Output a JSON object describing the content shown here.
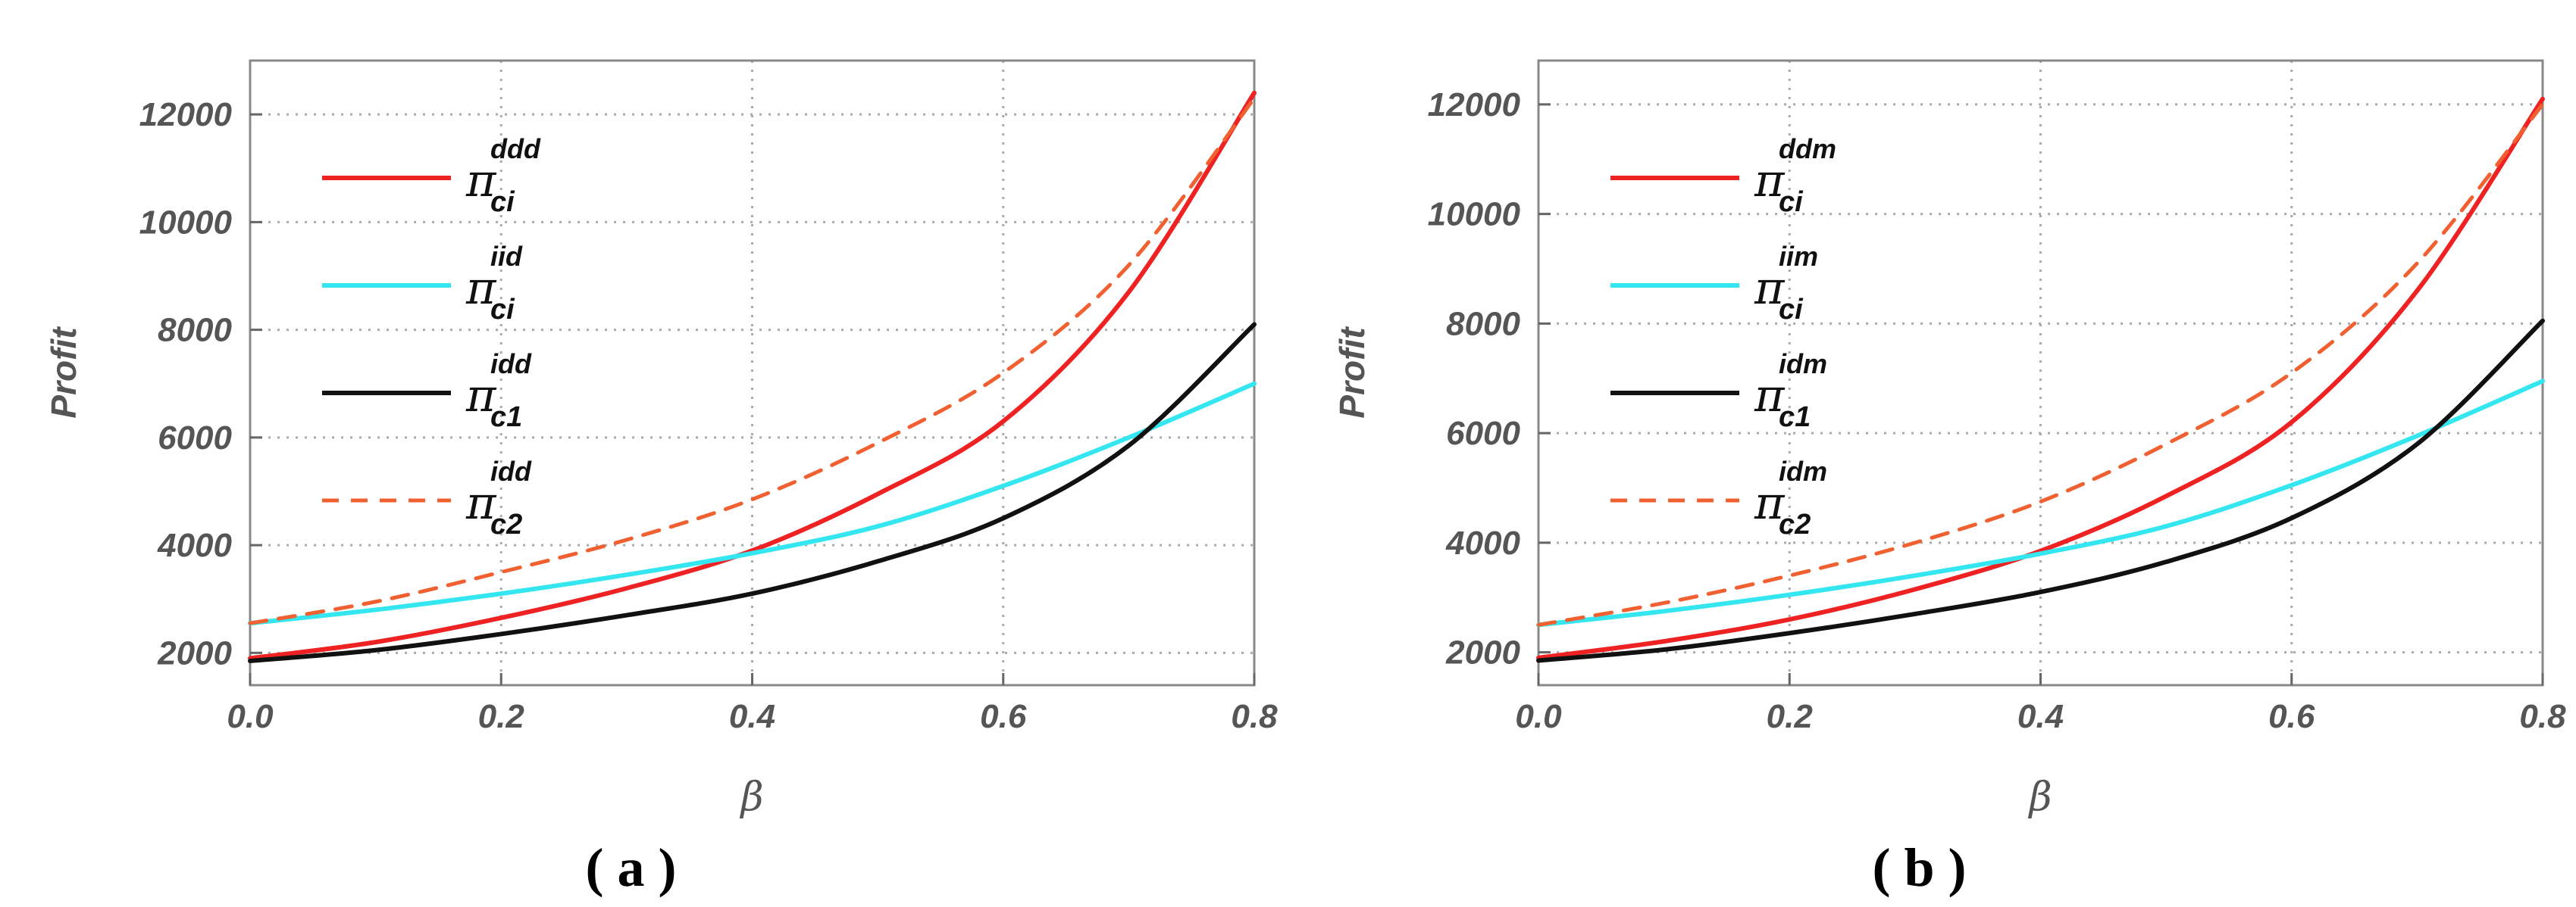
{
  "chart_data": [
    {
      "type": "line",
      "caption": "( a )",
      "xlabel": "β",
      "ylabel": "Profit",
      "xlim": [
        0,
        0.8
      ],
      "ylim": [
        1400,
        13000
      ],
      "xticks": [
        "0.0",
        "0.2",
        "0.4",
        "0.6",
        "0.8"
      ],
      "yticks": [
        "2000",
        "4000",
        "6000",
        "8000",
        "10000",
        "12000"
      ],
      "grid": true,
      "legend_position": "top-left",
      "x": [
        0.0,
        0.1,
        0.2,
        0.3,
        0.4,
        0.5,
        0.6,
        0.7,
        0.8
      ],
      "series": [
        {
          "name": "π",
          "sub": "ci",
          "sup": "ddd",
          "color": "#ee2222",
          "style": "solid",
          "values": [
            1900,
            2200,
            2650,
            3200,
            3900,
            4950,
            6300,
            8700,
            12400
          ]
        },
        {
          "name": "π",
          "sub": "ci",
          "sup": "iid",
          "color": "#33e6ef",
          "style": "solid",
          "values": [
            2550,
            2800,
            3100,
            3450,
            3850,
            4350,
            5100,
            6000,
            7000
          ]
        },
        {
          "name": "π",
          "sub": "c1",
          "sup": "idd",
          "color": "#111111",
          "style": "solid",
          "values": [
            1850,
            2050,
            2350,
            2700,
            3100,
            3700,
            4500,
            5850,
            8100
          ]
        },
        {
          "name": "π",
          "sub": "c2",
          "sup": "idd",
          "color": "#f06030",
          "style": "dashed",
          "values": [
            2550,
            2950,
            3500,
            4100,
            4850,
            5900,
            7200,
            9200,
            12300
          ]
        }
      ]
    },
    {
      "type": "line",
      "caption": "( b )",
      "xlabel": "β",
      "ylabel": "Profit",
      "xlim": [
        0,
        0.8
      ],
      "ylim": [
        1400,
        12800
      ],
      "xticks": [
        "0.0",
        "0.2",
        "0.4",
        "0.6",
        "0.8"
      ],
      "yticks": [
        "2000",
        "4000",
        "6000",
        "8000",
        "10000",
        "12000"
      ],
      "grid": true,
      "legend_position": "top-left",
      "x": [
        0.0,
        0.1,
        0.2,
        0.3,
        0.4,
        0.5,
        0.6,
        0.7,
        0.8
      ],
      "series": [
        {
          "name": "π",
          "sub": "ci",
          "sup": "ddm",
          "color": "#ee2222",
          "style": "solid",
          "values": [
            1900,
            2200,
            2600,
            3150,
            3850,
            4850,
            6200,
            8600,
            12100
          ]
        },
        {
          "name": "π",
          "sub": "ci",
          "sup": "iim",
          "color": "#33e6ef",
          "style": "solid",
          "values": [
            2500,
            2750,
            3050,
            3400,
            3800,
            4300,
            5050,
            5950,
            6950
          ]
        },
        {
          "name": "π",
          "sub": "c1",
          "sup": "idm",
          "color": "#111111",
          "style": "solid",
          "values": [
            1850,
            2050,
            2350,
            2700,
            3100,
            3650,
            4450,
            5800,
            8050
          ]
        },
        {
          "name": "π",
          "sub": "c2",
          "sup": "idm",
          "color": "#f06030",
          "style": "dashed",
          "values": [
            2500,
            2900,
            3400,
            4000,
            4750,
            5800,
            7100,
            9100,
            12000
          ]
        }
      ]
    }
  ]
}
